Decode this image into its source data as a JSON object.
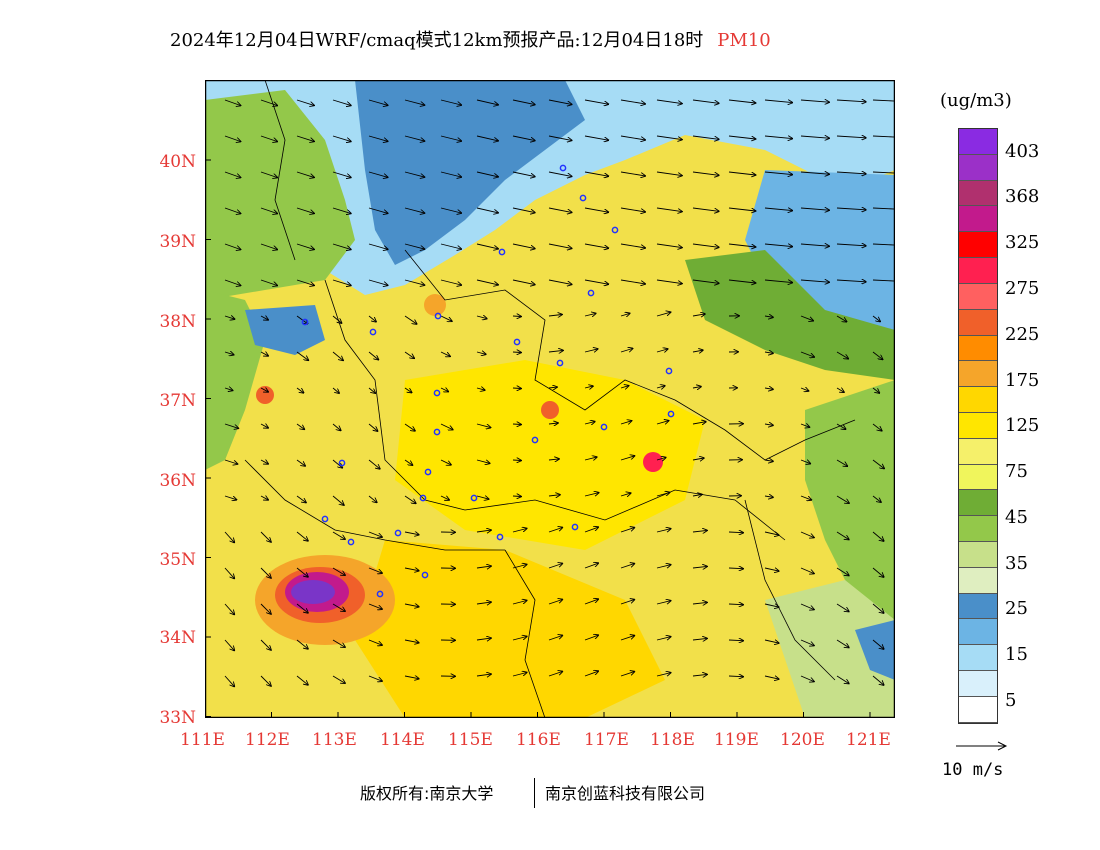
{
  "title": {
    "main": "2024年12月04日WRF/cmaq模式12km预报产品:12月04日18时",
    "variable": "PM10"
  },
  "axes": {
    "lat_labels": [
      "40N",
      "39N",
      "38N",
      "37N",
      "36N",
      "35N",
      "34N",
      "33N"
    ],
    "lon_labels": [
      "111E",
      "112E",
      "113E",
      "114E",
      "115E",
      "116E",
      "117E",
      "118E",
      "119E",
      "120E",
      "121E"
    ]
  },
  "legend": {
    "unit": "(ug/m3)",
    "labels": [
      "403",
      "368",
      "325",
      "275",
      "225",
      "175",
      "125",
      "75",
      "45",
      "35",
      "25",
      "15",
      "5"
    ],
    "colors": [
      "#8a2be2",
      "#9b30c8",
      "#b0306e",
      "#c21a8c",
      "#ff0000",
      "#ff2050",
      "#ff6060",
      "#f0602a",
      "#ff8c00",
      "#f5a52a",
      "#ffd700",
      "#ffe600",
      "#f5f06a",
      "#f0f55c",
      "#6fad35",
      "#93c84a",
      "#c7e08a",
      "#dfeec0",
      "#4a8fc9",
      "#6cb4e4",
      "#a6dcf5",
      "#d9f0fb",
      "#ffffff"
    ]
  },
  "wind_scale": {
    "label": "10 m/s"
  },
  "footer": {
    "copyright": "版权所有:南京大学",
    "company": "南京创蓝科技有限公司"
  },
  "colors": {
    "axis_label": "#e53935",
    "land_base": "#f2e04a",
    "high": "#7a35c8"
  }
}
